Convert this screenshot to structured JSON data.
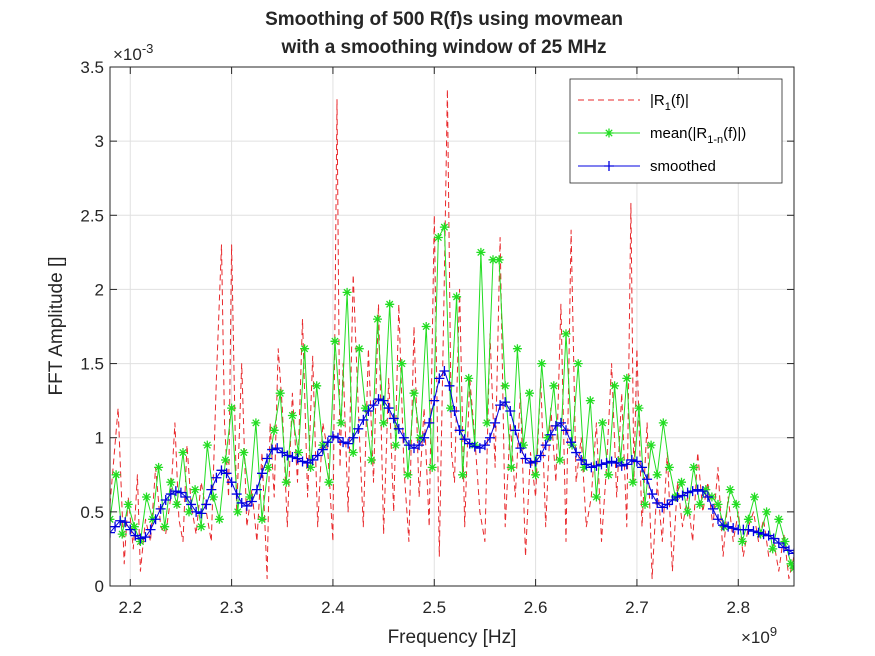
{
  "chart_data": {
    "type": "line",
    "title_line1": "Smoothing of 500 R(f)s using movmean",
    "title_line2": "with a smoothing window of 25 MHz",
    "xlabel": "Frequency [Hz]",
    "ylabel": "FFT Amplitude []",
    "x_exponent_base": "×10",
    "x_exponent_power": "9",
    "y_exponent_base": "×10",
    "y_exponent_power": "-3",
    "xlim": [
      2.18,
      2.855
    ],
    "ylim": [
      0,
      3.5
    ],
    "x_ticks": [
      2.2,
      2.3,
      2.4,
      2.5,
      2.6,
      2.7,
      2.8
    ],
    "x_tick_labels": [
      "2.2",
      "2.3",
      "2.4",
      "2.5",
      "2.6",
      "2.7",
      "2.8"
    ],
    "y_ticks": [
      0,
      0.5,
      1,
      1.5,
      2,
      2.5,
      3,
      3.5
    ],
    "y_tick_labels": [
      "0",
      "0.5",
      "1",
      "1.5",
      "2",
      "2.5",
      "3",
      "3.5"
    ],
    "grid": true,
    "legend_position": "top-right",
    "legend": [
      {
        "text": "|R",
        "sub": "1",
        "rest": "(f)|"
      },
      {
        "text": "mean(|R",
        "sub": "1-n",
        "rest": "(f)|)"
      },
      {
        "text": "smoothed",
        "sub": "",
        "rest": ""
      }
    ],
    "colors": {
      "r1": "#e8282b",
      "mean": "#22dd22",
      "smoothed": "#0000e0",
      "axis": "#262626",
      "grid": "#e0e0e0"
    },
    "series": [
      {
        "key": "r1",
        "style": "dashed",
        "x": [
          2.18,
          2.188,
          2.194,
          2.198,
          2.203,
          2.207,
          2.21,
          2.215,
          2.22,
          2.225,
          2.23,
          2.235,
          2.24,
          2.244,
          2.248,
          2.252,
          2.256,
          2.26,
          2.265,
          2.27,
          2.275,
          2.28,
          2.285,
          2.29,
          2.293,
          2.297,
          2.3,
          2.305,
          2.31,
          2.315,
          2.32,
          2.325,
          2.33,
          2.335,
          2.338,
          2.342,
          2.346,
          2.35,
          2.355,
          2.36,
          2.365,
          2.37,
          2.375,
          2.38,
          2.385,
          2.39,
          2.395,
          2.4,
          2.404,
          2.407,
          2.41,
          2.415,
          2.42,
          2.425,
          2.43,
          2.435,
          2.44,
          2.445,
          2.45,
          2.455,
          2.46,
          2.465,
          2.47,
          2.475,
          2.48,
          2.485,
          2.49,
          2.495,
          2.5,
          2.505,
          2.51,
          2.513,
          2.517,
          2.52,
          2.525,
          2.53,
          2.535,
          2.54,
          2.545,
          2.55,
          2.555,
          2.56,
          2.565,
          2.57,
          2.575,
          2.58,
          2.585,
          2.59,
          2.595,
          2.6,
          2.605,
          2.61,
          2.615,
          2.62,
          2.625,
          2.63,
          2.635,
          2.64,
          2.645,
          2.65,
          2.655,
          2.66,
          2.665,
          2.67,
          2.675,
          2.68,
          2.685,
          2.69,
          2.694,
          2.697,
          2.7,
          2.705,
          2.71,
          2.715,
          2.72,
          2.725,
          2.73,
          2.735,
          2.74,
          2.745,
          2.75,
          2.755,
          2.76,
          2.765,
          2.77,
          2.775,
          2.78,
          2.785,
          2.79,
          2.795,
          2.8,
          2.805,
          2.81,
          2.815,
          2.82,
          2.825,
          2.83,
          2.835,
          2.84,
          2.845,
          2.85,
          2.855
        ],
        "y": [
          0.55,
          1.2,
          0.15,
          0.6,
          0.25,
          0.75,
          0.1,
          0.45,
          0.3,
          0.8,
          0.4,
          0.35,
          0.6,
          1.1,
          0.45,
          0.3,
          0.95,
          0.55,
          0.35,
          0.7,
          0.5,
          0.3,
          1.4,
          2.3,
          1.1,
          0.6,
          2.3,
          0.5,
          1.5,
          0.4,
          0.65,
          0.3,
          0.9,
          0.05,
          1.1,
          0.6,
          1.6,
          1.2,
          0.4,
          1.3,
          0.7,
          1.8,
          0.6,
          1.55,
          0.4,
          1.1,
          0.9,
          0.3,
          3.28,
          0.8,
          1.5,
          0.5,
          2.1,
          1.2,
          0.4,
          1.6,
          0.7,
          1.9,
          0.35,
          1.4,
          0.5,
          1.9,
          0.8,
          0.3,
          1.75,
          0.6,
          1.2,
          0.4,
          2.5,
          0.2,
          2.1,
          3.35,
          0.9,
          0.7,
          2.0,
          0.4,
          1.4,
          1.0,
          0.5,
          0.3,
          1.7,
          0.8,
          2.35,
          0.4,
          1.1,
          0.6,
          1.3,
          0.2,
          0.9,
          0.6,
          1.4,
          0.4,
          1.2,
          0.7,
          1.9,
          0.3,
          2.4,
          0.7,
          1.0,
          0.4,
          0.6,
          1.1,
          0.3,
          0.8,
          1.5,
          0.6,
          1.3,
          0.4,
          2.58,
          0.7,
          1.6,
          0.4,
          1.1,
          0.05,
          0.7,
          0.3,
          0.9,
          0.1,
          0.7,
          0.4,
          0.6,
          0.3,
          0.9,
          0.5,
          0.7,
          0.4,
          0.8,
          0.2,
          0.6,
          0.3,
          0.5,
          0.2,
          0.4,
          0.5,
          0.3,
          0.45,
          0.2,
          0.3,
          0.1,
          0.35,
          0.05,
          0.2
        ]
      },
      {
        "key": "mean",
        "style": "solid-star",
        "x": [
          2.18,
          2.186,
          2.192,
          2.198,
          2.204,
          2.21,
          2.216,
          2.222,
          2.228,
          2.234,
          2.24,
          2.246,
          2.252,
          2.258,
          2.264,
          2.27,
          2.276,
          2.282,
          2.288,
          2.294,
          2.3,
          2.306,
          2.312,
          2.318,
          2.324,
          2.33,
          2.336,
          2.342,
          2.348,
          2.354,
          2.36,
          2.366,
          2.372,
          2.378,
          2.384,
          2.39,
          2.396,
          2.402,
          2.408,
          2.414,
          2.42,
          2.426,
          2.432,
          2.438,
          2.444,
          2.45,
          2.456,
          2.462,
          2.468,
          2.474,
          2.48,
          2.486,
          2.492,
          2.498,
          2.504,
          2.51,
          2.516,
          2.522,
          2.528,
          2.534,
          2.54,
          2.546,
          2.552,
          2.558,
          2.564,
          2.57,
          2.576,
          2.582,
          2.588,
          2.594,
          2.6,
          2.606,
          2.612,
          2.618,
          2.624,
          2.63,
          2.636,
          2.642,
          2.648,
          2.654,
          2.66,
          2.666,
          2.672,
          2.678,
          2.684,
          2.69,
          2.696,
          2.702,
          2.708,
          2.714,
          2.72,
          2.726,
          2.732,
          2.738,
          2.744,
          2.75,
          2.756,
          2.762,
          2.768,
          2.774,
          2.78,
          2.786,
          2.792,
          2.798,
          2.804,
          2.81,
          2.816,
          2.822,
          2.828,
          2.834,
          2.84,
          2.846,
          2.852,
          2.855
        ],
        "y": [
          0.45,
          0.75,
          0.35,
          0.55,
          0.4,
          0.3,
          0.6,
          0.45,
          0.8,
          0.4,
          0.7,
          0.55,
          0.9,
          0.5,
          0.65,
          0.4,
          0.95,
          0.6,
          0.45,
          0.85,
          1.2,
          0.5,
          0.9,
          0.6,
          1.1,
          0.45,
          0.8,
          1.05,
          1.3,
          0.7,
          1.15,
          0.9,
          1.6,
          0.8,
          1.35,
          0.95,
          0.7,
          1.65,
          1.1,
          1.98,
          0.9,
          1.6,
          1.2,
          0.85,
          1.8,
          1.1,
          1.9,
          0.95,
          1.5,
          0.75,
          1.3,
          1.0,
          1.75,
          0.8,
          2.35,
          2.42,
          1.2,
          1.95,
          0.75,
          1.4,
          0.95,
          2.25,
          1.1,
          2.2,
          2.2,
          1.35,
          0.8,
          1.6,
          0.95,
          1.3,
          0.75,
          1.5,
          1.0,
          1.35,
          0.85,
          1.7,
          0.95,
          1.5,
          0.8,
          1.25,
          0.6,
          1.1,
          0.75,
          1.35,
          0.85,
          1.4,
          0.7,
          1.2,
          0.55,
          0.95,
          0.75,
          1.1,
          0.8,
          0.6,
          0.7,
          0.5,
          0.8,
          0.55,
          0.65,
          0.6,
          0.55,
          0.4,
          0.65,
          0.55,
          0.3,
          0.45,
          0.6,
          0.35,
          0.5,
          0.25,
          0.45,
          0.3,
          0.15,
          0.12
        ]
      },
      {
        "key": "smoothed",
        "style": "solid-plus",
        "x": [
          2.18,
          2.185,
          2.19,
          2.195,
          2.2,
          2.205,
          2.21,
          2.215,
          2.22,
          2.225,
          2.23,
          2.235,
          2.24,
          2.245,
          2.25,
          2.255,
          2.26,
          2.265,
          2.27,
          2.275,
          2.28,
          2.285,
          2.29,
          2.295,
          2.3,
          2.305,
          2.31,
          2.315,
          2.32,
          2.325,
          2.33,
          2.335,
          2.34,
          2.345,
          2.35,
          2.355,
          2.36,
          2.365,
          2.37,
          2.375,
          2.38,
          2.385,
          2.39,
          2.395,
          2.4,
          2.405,
          2.41,
          2.415,
          2.42,
          2.425,
          2.43,
          2.435,
          2.44,
          2.445,
          2.45,
          2.455,
          2.46,
          2.465,
          2.47,
          2.475,
          2.48,
          2.485,
          2.49,
          2.495,
          2.5,
          2.505,
          2.51,
          2.515,
          2.52,
          2.525,
          2.53,
          2.535,
          2.54,
          2.545,
          2.55,
          2.555,
          2.56,
          2.565,
          2.57,
          2.575,
          2.58,
          2.585,
          2.59,
          2.595,
          2.6,
          2.605,
          2.61,
          2.615,
          2.62,
          2.625,
          2.63,
          2.635,
          2.64,
          2.645,
          2.65,
          2.655,
          2.66,
          2.665,
          2.67,
          2.675,
          2.68,
          2.685,
          2.69,
          2.695,
          2.7,
          2.705,
          2.71,
          2.715,
          2.72,
          2.725,
          2.73,
          2.735,
          2.74,
          2.745,
          2.75,
          2.755,
          2.76,
          2.765,
          2.77,
          2.775,
          2.78,
          2.785,
          2.79,
          2.795,
          2.8,
          2.805,
          2.81,
          2.815,
          2.82,
          2.825,
          2.83,
          2.835,
          2.84,
          2.845,
          2.85,
          2.855
        ],
        "y": [
          0.36,
          0.4,
          0.44,
          0.43,
          0.38,
          0.34,
          0.32,
          0.33,
          0.38,
          0.45,
          0.52,
          0.58,
          0.62,
          0.64,
          0.63,
          0.6,
          0.55,
          0.5,
          0.49,
          0.55,
          0.65,
          0.73,
          0.78,
          0.76,
          0.7,
          0.62,
          0.56,
          0.54,
          0.57,
          0.65,
          0.76,
          0.86,
          0.92,
          0.93,
          0.9,
          0.88,
          0.87,
          0.86,
          0.84,
          0.83,
          0.85,
          0.88,
          0.92,
          0.97,
          1.01,
          1.0,
          0.97,
          0.96,
          1.0,
          1.06,
          1.12,
          1.18,
          1.22,
          1.26,
          1.25,
          1.2,
          1.13,
          1.06,
          1.0,
          0.95,
          0.93,
          0.95,
          1.0,
          1.1,
          1.25,
          1.4,
          1.45,
          1.35,
          1.18,
          1.05,
          0.99,
          0.96,
          0.94,
          0.93,
          0.95,
          1.0,
          1.1,
          1.22,
          1.24,
          1.18,
          1.05,
          0.93,
          0.86,
          0.83,
          0.84,
          0.88,
          0.95,
          1.02,
          1.08,
          1.1,
          1.05,
          0.97,
          0.9,
          0.85,
          0.82,
          0.8,
          0.81,
          0.82,
          0.83,
          0.84,
          0.83,
          0.81,
          0.82,
          0.85,
          0.84,
          0.8,
          0.72,
          0.62,
          0.56,
          0.53,
          0.55,
          0.58,
          0.6,
          0.61,
          0.63,
          0.64,
          0.65,
          0.64,
          0.6,
          0.52,
          0.45,
          0.41,
          0.4,
          0.39,
          0.38,
          0.38,
          0.38,
          0.37,
          0.36,
          0.35,
          0.34,
          0.32,
          0.29,
          0.26,
          0.24,
          0.22
        ]
      }
    ]
  }
}
